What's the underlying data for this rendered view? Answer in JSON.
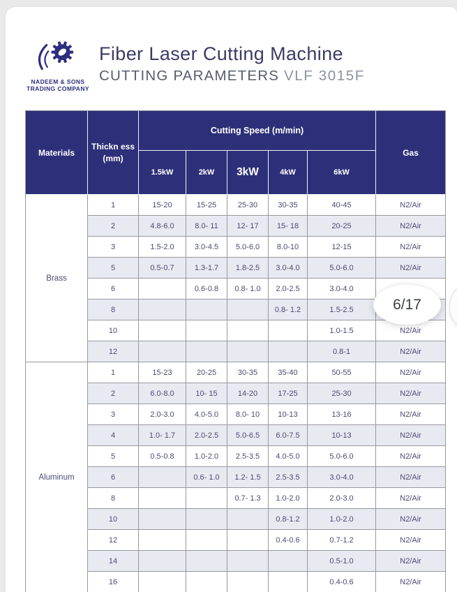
{
  "brand": {
    "line1": "NADEEM & SONS",
    "line2": "TRADING COMPANY"
  },
  "header": {
    "title": "Fiber Laser Cutting Machine",
    "subtitle": "CUTTING PARAMETERS",
    "model": "VLF 3015F"
  },
  "overlay": {
    "page_indicator": "6/17"
  },
  "table": {
    "header": {
      "materials": "Materials",
      "thickness_line1": "Thickn ess",
      "thickness_line2": "(mm)",
      "cutting_speed": "Cutting Speed (m/min)",
      "powers": [
        "1.5kW",
        "2kW",
        "3kW",
        "4kW",
        "6kW"
      ],
      "gas": "Gas"
    },
    "sections": [
      {
        "material": "Brass",
        "rows": [
          {
            "thickness": "1",
            "speeds": [
              "15-20",
              "15-25",
              "25-30",
              "30-35",
              "40-45"
            ],
            "gas": "N2/Air"
          },
          {
            "thickness": "2",
            "speeds": [
              "4.8-6.0",
              "8.0- 11",
              "12- 17",
              "15- 18",
              "20-25"
            ],
            "gas": "N2/Air"
          },
          {
            "thickness": "3",
            "speeds": [
              "1.5-2.0",
              "3.0-4.5",
              "5.0-6.0",
              "8.0-10",
              "12-15"
            ],
            "gas": "N2/Air"
          },
          {
            "thickness": "5",
            "speeds": [
              "0.5-0.7",
              "1.3-1.7",
              "1.8-2.5",
              "3.0-4.0",
              "5.0-6.0"
            ],
            "gas": "N2/Air"
          },
          {
            "thickness": "6",
            "speeds": [
              "",
              "0.6-0.8",
              "0.8- 1.0",
              "2.0-2.5",
              "3.0-4.0"
            ],
            "gas": ""
          },
          {
            "thickness": "8",
            "speeds": [
              "",
              "",
              "",
              "0.8- 1.2",
              "1.5-2.5"
            ],
            "gas": ""
          },
          {
            "thickness": "10",
            "speeds": [
              "",
              "",
              "",
              "",
              "1.0-1.5"
            ],
            "gas": "N2/Air"
          },
          {
            "thickness": "12",
            "speeds": [
              "",
              "",
              "",
              "",
              "0.8-1"
            ],
            "gas": "N2/Air"
          }
        ]
      },
      {
        "material": "Aluminum",
        "rows": [
          {
            "thickness": "1",
            "speeds": [
              "15-23",
              "20-25",
              "30-35",
              "35-40",
              "50-55"
            ],
            "gas": "N2/Air"
          },
          {
            "thickness": "2",
            "speeds": [
              "6.0-8.0",
              "10- 15",
              "14-20",
              "17-25",
              "25-30"
            ],
            "gas": "N2/Air"
          },
          {
            "thickness": "3",
            "speeds": [
              "2.0-3.0",
              "4.0-5.0",
              "8.0- 10",
              "10-13",
              "13-16"
            ],
            "gas": "N2/Air"
          },
          {
            "thickness": "4",
            "speeds": [
              "1.0- 1.7",
              "2.0-2.5",
              "5.0-6.5",
              "6.0-7.5",
              "10-13"
            ],
            "gas": "N2/Air"
          },
          {
            "thickness": "5",
            "speeds": [
              "0.5-0.8",
              "1.0-2.0",
              "2.5-3.5",
              "4.0-5.0",
              "5.0-6.0"
            ],
            "gas": "N2/Air"
          },
          {
            "thickness": "6",
            "speeds": [
              "",
              "0.6- 1.0",
              "1.2- 1.5",
              "2.5-3.5",
              "3.0-4.0"
            ],
            "gas": "N2/Air"
          },
          {
            "thickness": "8",
            "speeds": [
              "",
              "",
              "0.7- 1.3",
              "1.0-2.0",
              "2.0-3.0"
            ],
            "gas": "N2/Air"
          },
          {
            "thickness": "10",
            "speeds": [
              "",
              "",
              "",
              "0.8-1.2",
              "1.0-2.0"
            ],
            "gas": "N2/Air"
          },
          {
            "thickness": "12",
            "speeds": [
              "",
              "",
              "",
              "0.4-0.6",
              "0.7-1.2"
            ],
            "gas": "N2/Air"
          },
          {
            "thickness": "14",
            "speeds": [
              "",
              "",
              "",
              "",
              "0.5-1.0"
            ],
            "gas": "N2/Air"
          },
          {
            "thickness": "16",
            "speeds": [
              "",
              "",
              "",
              "",
              "0.4-0.6"
            ],
            "gas": "N2/Air"
          }
        ]
      }
    ]
  },
  "colors": {
    "header_navy": "#2d3079",
    "row_shade": "#e8eaf2",
    "data_text": "#494b72",
    "border_gray": "#98989f",
    "logo_navy": "#2d2f7e"
  }
}
